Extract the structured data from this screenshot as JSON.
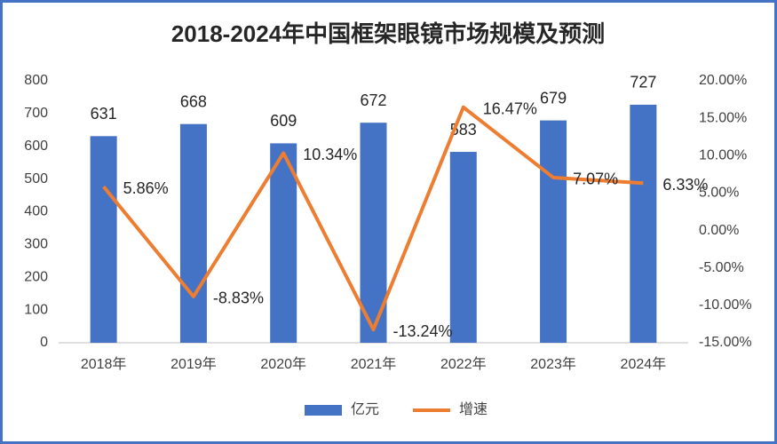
{
  "chart_data": {
    "type": "bar",
    "title": "2018-2024年中国框架眼镜市场规模及预测",
    "categories": [
      "2018年",
      "2019年",
      "2020年",
      "2021年",
      "2022年",
      "2023年",
      "2024年"
    ],
    "series": [
      {
        "name": "亿元",
        "type": "bar",
        "color": "#4472c4",
        "values": [
          631,
          668,
          609,
          672,
          583,
          679,
          727
        ]
      },
      {
        "name": "增速",
        "type": "line",
        "axis": "y2",
        "color": "#ed7d31",
        "values": [
          5.86,
          -8.83,
          10.34,
          -13.24,
          16.47,
          7.07,
          6.33
        ],
        "value_labels": [
          "5.86%",
          "-8.83%",
          "10.34%",
          "-13.24%",
          "16.47%",
          "7.07%",
          "6.33%"
        ]
      }
    ],
    "ylim": [
      0,
      800
    ],
    "yticks": [
      0,
      100,
      200,
      300,
      400,
      500,
      600,
      700,
      800
    ],
    "y2lim": [
      -15,
      20
    ],
    "y2ticks": [
      {
        "value": -15,
        "label": "-15.00%"
      },
      {
        "value": -10,
        "label": "-10.00%"
      },
      {
        "value": -5,
        "label": "-5.00%"
      },
      {
        "value": 0,
        "label": "0.00%"
      },
      {
        "value": 5,
        "label": "5.00%"
      },
      {
        "value": 10,
        "label": "10.00%"
      },
      {
        "value": 15,
        "label": "15.00%"
      },
      {
        "value": 20,
        "label": "20.00%"
      }
    ],
    "grid": false,
    "legend": "bottom"
  }
}
